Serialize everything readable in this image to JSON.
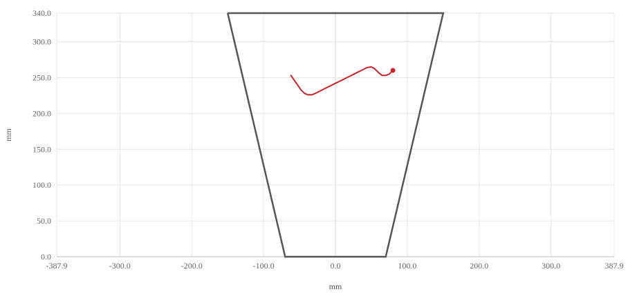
{
  "chart_data": {
    "type": "line",
    "xlabel": "mm",
    "ylabel": "mm",
    "xlim": [
      -387.9,
      387.9
    ],
    "ylim": [
      0.0,
      340.0
    ],
    "x_ticks": [
      -387.9,
      -300.0,
      -200.0,
      -100.0,
      0.0,
      100.0,
      200.0,
      300.0,
      387.9
    ],
    "x_tick_labels": [
      "-387.9",
      "-300.0",
      "-200.0",
      "-100.0",
      "0.0",
      "100.0",
      "200.0",
      "300.0",
      "387.9"
    ],
    "y_ticks": [
      0.0,
      50.0,
      100.0,
      150.0,
      200.0,
      250.0,
      300.0,
      340.0
    ],
    "y_tick_labels": [
      "0.0",
      "50.0",
      "100.0",
      "150.0",
      "200.0",
      "250.0",
      "300.0",
      "340.0"
    ],
    "grid": true,
    "series": [
      {
        "color": "#555555",
        "x": [
          -150,
          150,
          70,
          -70,
          -150
        ],
        "y": [
          340,
          340,
          0,
          0,
          340
        ]
      },
      {
        "color": "#d0202a",
        "x": [
          -62,
          -55,
          -48,
          -43,
          -38,
          -33,
          -28,
          -20,
          -10,
          0,
          10,
          20,
          30,
          38,
          44,
          50,
          55,
          60,
          65,
          70,
          75,
          78,
          80
        ],
        "y": [
          253,
          243,
          233,
          228,
          226,
          226,
          228,
          232,
          237,
          242,
          247,
          252,
          257,
          261,
          264,
          265,
          262,
          257,
          253,
          253,
          255,
          258,
          260
        ]
      }
    ],
    "end_marker": {
      "x": 80,
      "y": 260,
      "color": "#d0202a"
    }
  }
}
